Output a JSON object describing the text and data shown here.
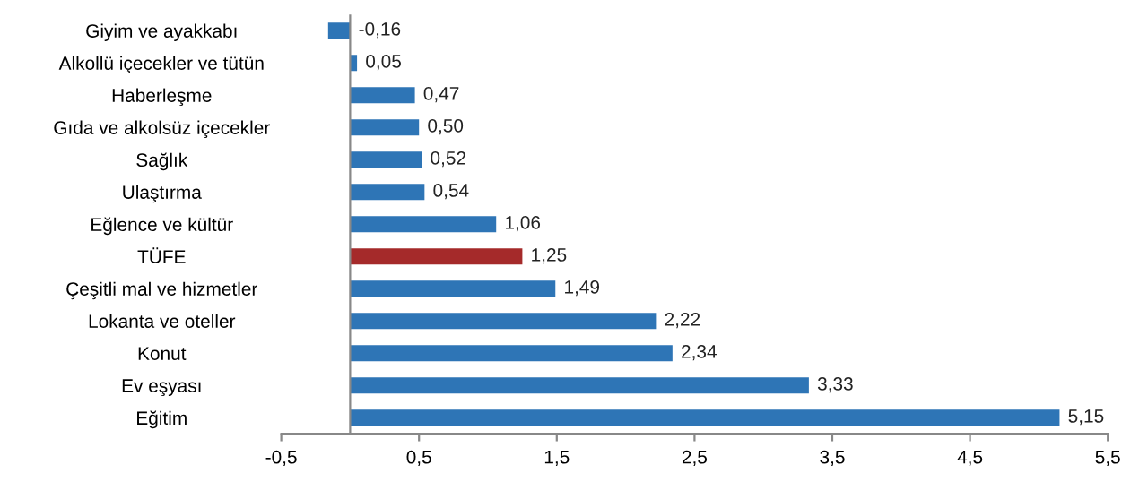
{
  "chart_data": {
    "type": "bar",
    "orientation": "horizontal",
    "categories": [
      "Giyim ve ayakkabı",
      "Alkollü içecekler ve tütün",
      "Haberleşme",
      "Gıda ve alkolsüz içecekler",
      "Sağlık",
      "Ulaştırma",
      "Eğlence ve kültür",
      "TÜFE",
      "Çeşitli mal ve hizmetler",
      "Lokanta ve oteller",
      "Konut",
      "Ev eşyası",
      "Eğitim"
    ],
    "values": [
      -0.16,
      0.05,
      0.47,
      0.5,
      0.52,
      0.54,
      1.06,
      1.25,
      1.49,
      2.22,
      2.34,
      3.33,
      5.15
    ],
    "value_labels": [
      "-0,16",
      "0,05",
      "0,47",
      "0,50",
      "0,52",
      "0,54",
      "1,06",
      "1,25",
      "1,49",
      "2,22",
      "2,34",
      "3,33",
      "5,15"
    ],
    "colors": [
      "#2e75b6",
      "#2e75b6",
      "#2e75b6",
      "#2e75b6",
      "#2e75b6",
      "#2e75b6",
      "#2e75b6",
      "#a52a2a",
      "#2e75b6",
      "#2e75b6",
      "#2e75b6",
      "#2e75b6",
      "#2e75b6"
    ],
    "xlim": [
      -0.5,
      5.5
    ],
    "xticks": [
      {
        "value": -0.5,
        "label": "-0,5"
      },
      {
        "value": 0.5,
        "label": "0,5"
      },
      {
        "value": 1.5,
        "label": "1,5"
      },
      {
        "value": 2.5,
        "label": "2,5"
      },
      {
        "value": 3.5,
        "label": "3,5"
      },
      {
        "value": 4.5,
        "label": "4,5"
      },
      {
        "value": 5.5,
        "label": "5,5"
      }
    ],
    "grid": false
  }
}
